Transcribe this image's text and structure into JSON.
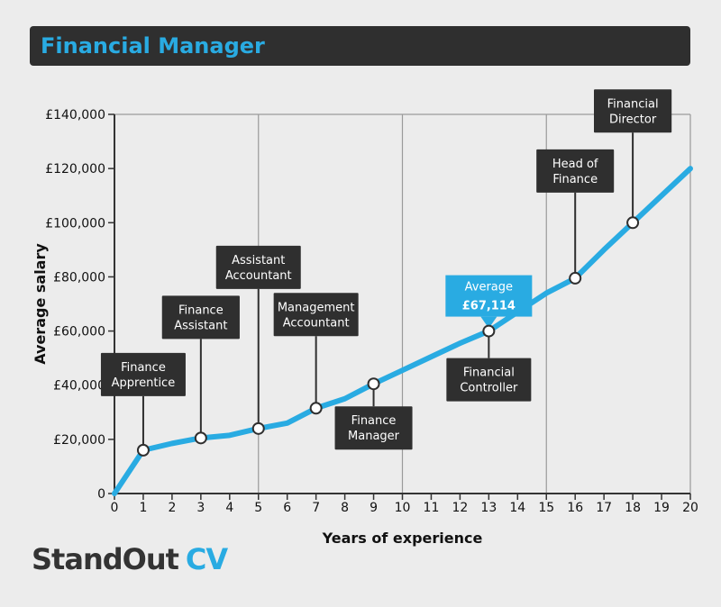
{
  "header": {
    "title": "Financial Manager"
  },
  "brand": {
    "part1": "StandOut",
    "part2": "CV"
  },
  "colors": {
    "accent": "#29abe2",
    "dark": "#2f2f2f",
    "background": "#ececec"
  },
  "chart_data": {
    "type": "line",
    "title": "Financial Manager",
    "xlabel": "Years of experience",
    "ylabel": "Average salary",
    "xlim": [
      0,
      20
    ],
    "ylim": [
      0,
      140000
    ],
    "x_ticks": [
      "0",
      "1",
      "2",
      "3",
      "4",
      "5",
      "6",
      "7",
      "8",
      "9",
      "10",
      "11",
      "12",
      "13",
      "14",
      "15",
      "16",
      "17",
      "18",
      "19",
      "20"
    ],
    "y_ticks": [
      "0",
      "£20,000",
      "£40,000",
      "£60,000",
      "£80,000",
      "£100,000",
      "£120,000",
      "£140,000"
    ],
    "grid": "vertical lines at 5, 10, 15",
    "series": [
      {
        "x": [
          0,
          1,
          2,
          3,
          4,
          5,
          6,
          7,
          8,
          9,
          10,
          11,
          12,
          13,
          14,
          15,
          16,
          17,
          18,
          19,
          20
        ],
        "y": [
          0,
          16000,
          18500,
          20500,
          21500,
          24000,
          26000,
          31500,
          35000,
          40500,
          45500,
          50500,
          55500,
          60000,
          67000,
          74000,
          79500,
          90000,
          100000,
          110000,
          120000
        ]
      }
    ],
    "milestones": [
      {
        "label": [
          "Finance",
          "Apprentice"
        ],
        "x": 1,
        "y": 16000,
        "position": "above"
      },
      {
        "label": [
          "Finance",
          "Assistant"
        ],
        "x": 3,
        "y": 20500,
        "position": "above"
      },
      {
        "label": [
          "Assistant",
          "Accountant"
        ],
        "x": 5,
        "y": 24000,
        "position": "above"
      },
      {
        "label": [
          "Management",
          "Accountant"
        ],
        "x": 7,
        "y": 31500,
        "position": "above"
      },
      {
        "label": [
          "Finance",
          "Manager"
        ],
        "x": 9,
        "y": 40500,
        "position": "below"
      },
      {
        "label": [
          "Financial",
          "Controller"
        ],
        "x": 13,
        "y": 60000,
        "position": "below"
      },
      {
        "label": [
          "Head of",
          "Finance"
        ],
        "x": 16,
        "y": 79500,
        "position": "above"
      },
      {
        "label": [
          "Financial",
          "Director"
        ],
        "x": 18,
        "y": 100000,
        "position": "above"
      }
    ],
    "average": {
      "label": "Average",
      "value": "£67,114",
      "x": 13,
      "y": 60000
    }
  }
}
